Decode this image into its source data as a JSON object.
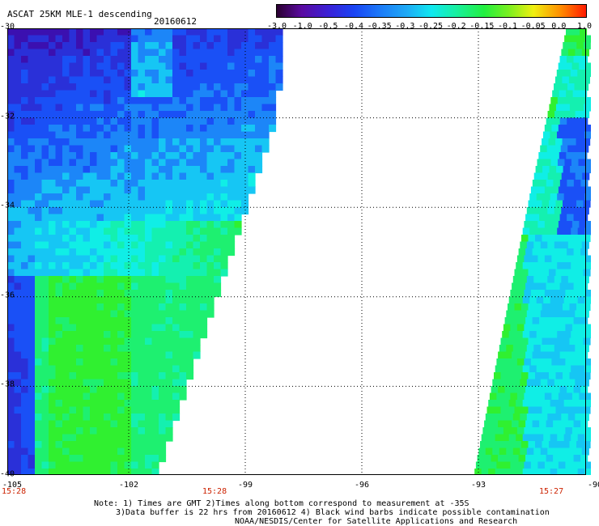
{
  "header": {
    "title": "ASCAT 25KM MLE-1 descending",
    "date": "20160612"
  },
  "colorbar": {
    "tick_labels": [
      "-3.0",
      "-1.0",
      "-0.5",
      "-0.4",
      "-0.35",
      "-0.3",
      "-0.25",
      "-0.2",
      "-0.15",
      "-0.1",
      "-0.05",
      "0.0",
      "1.0"
    ],
    "colors": [
      "#2a0030",
      "#5a0aa0",
      "#3a22d8",
      "#1a44f4",
      "#1c78f8",
      "#1eaaf6",
      "#10e8f0",
      "#18f0a0",
      "#22f040",
      "#7af020",
      "#f0f010",
      "#ff8a00",
      "#ff1a00"
    ]
  },
  "axes": {
    "y_labels": [
      "-30",
      "-32",
      "-34",
      "-36",
      "-38",
      "-40"
    ],
    "x_labels": [
      "-105",
      "-102",
      "-99",
      "-96",
      "-93",
      "-90"
    ],
    "x_range": [
      -105,
      -90
    ],
    "y_range": [
      -40,
      -30
    ]
  },
  "times": {
    "left": "15:28",
    "middle": "15:28",
    "right": "15:27"
  },
  "notes": {
    "line1": "Note: 1) Times are GMT 2)Times along bottom correspond to measurement at -35S",
    "line2": "3)Data buffer is 22 hrs from 20160612 4) Black wind barbs indicate possible contamination",
    "line3": "NOAA/NESDIS/Center for Satellite Applications and Research"
  }
}
